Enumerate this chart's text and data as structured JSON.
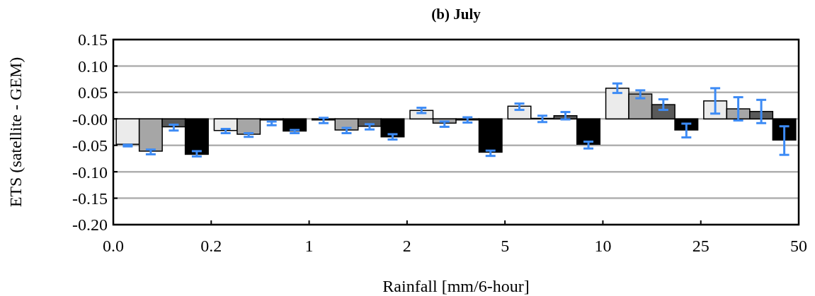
{
  "chart_data": {
    "type": "bar",
    "title": "(b) July",
    "xlabel": "Rainfall [mm/6-hour]",
    "ylabel": "ETS (satellite - GEM)",
    "categories": [
      null,
      null,
      null,
      null,
      null,
      null,
      null
    ],
    "annotations": [
      "0.0",
      "0.2",
      "1",
      "2",
      "5",
      "10",
      "25",
      "50"
    ],
    "ylim": [
      -0.2,
      0.15
    ],
    "yticks": [
      {
        "value": -0.2,
        "label": "-0.20"
      },
      {
        "value": -0.15,
        "label": "-0.15"
      },
      {
        "value": -0.1,
        "label": "-0.10"
      },
      {
        "value": -0.05,
        "label": "-0.05"
      },
      {
        "value": 0,
        "label": "-0.00"
      },
      {
        "value": 0.05,
        "label": "0.05"
      },
      {
        "value": 0.1,
        "label": "0.10"
      },
      {
        "value": 0.15,
        "label": "0.15"
      }
    ],
    "grid": "y",
    "series": [
      {
        "color": "#ebebeb",
        "values": [
          -0.048,
          -0.022,
          -0.002,
          0.016,
          0.024,
          0.058,
          0.034
        ],
        "errors": [
          [
            -0.052,
            -0.049
          ],
          [
            -0.027,
            -0.019
          ],
          [
            -0.008,
            0.002
          ],
          [
            0.011,
            0.021
          ],
          [
            0.017,
            0.029
          ],
          [
            0.049,
            0.067
          ],
          [
            0.01,
            0.058
          ]
        ]
      },
      {
        "color": "#a6a6a6",
        "values": [
          -0.061,
          -0.029,
          -0.021,
          -0.008,
          0.001,
          0.047,
          0.019
        ],
        "errors": [
          [
            -0.067,
            -0.058
          ],
          [
            -0.034,
            -0.027
          ],
          [
            -0.027,
            -0.017
          ],
          [
            -0.015,
            -0.005
          ],
          [
            -0.006,
            0.006
          ],
          [
            0.039,
            0.054
          ],
          [
            -0.003,
            0.041
          ]
        ]
      },
      {
        "color": "#595959",
        "values": [
          -0.015,
          -0.002,
          -0.014,
          -0.002,
          0.006,
          0.027,
          0.014
        ],
        "errors": [
          [
            -0.022,
            -0.011
          ],
          [
            -0.012,
            -0.005
          ],
          [
            -0.02,
            -0.01
          ],
          [
            -0.007,
            0.003
          ],
          [
            -0.001,
            0.013
          ],
          [
            0.017,
            0.037
          ],
          [
            -0.008,
            0.036
          ]
        ]
      },
      {
        "color": "#000000",
        "values": [
          -0.067,
          -0.023,
          -0.034,
          -0.063,
          -0.048,
          -0.021,
          -0.04
        ],
        "errors": [
          [
            -0.071,
            -0.061
          ],
          [
            -0.027,
            -0.021
          ],
          [
            -0.039,
            -0.029
          ],
          [
            -0.07,
            -0.06
          ],
          [
            -0.056,
            -0.043
          ],
          [
            -0.035,
            -0.009
          ],
          [
            -0.068,
            -0.014
          ]
        ]
      }
    ]
  }
}
